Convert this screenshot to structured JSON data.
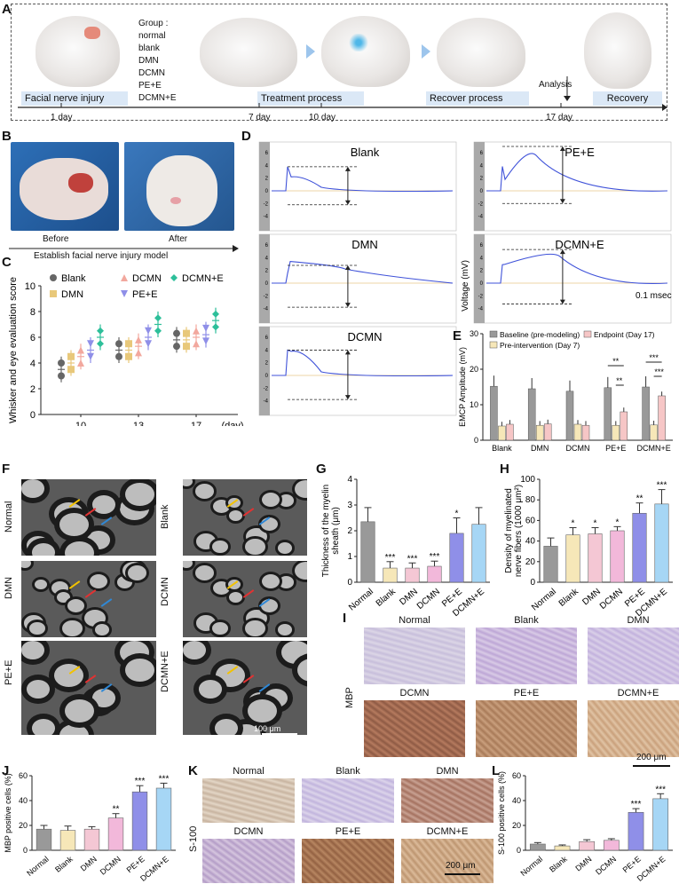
{
  "panelA": {
    "letter": "A",
    "group_title": "Group :",
    "groups": [
      "normal",
      "blank",
      "DMN",
      "DCMN",
      "PE+E",
      "DCMN+E"
    ],
    "stages": [
      "Facial nerve injury",
      "Treatment process",
      "Recover process",
      "Recovery"
    ],
    "days": [
      "1 day",
      "7 day",
      "10 day",
      "17 day"
    ],
    "analysis": "Analysis"
  },
  "panelB": {
    "letter": "B",
    "before": "Before",
    "after": "After",
    "caption": "Establish facial nerve injury model"
  },
  "panelC": {
    "letter": "C",
    "chart_data": {
      "type": "scatter",
      "ylabel": "Whisker and eye evaluation score",
      "xlabel": "(day)",
      "categories": [
        "10",
        "13",
        "17"
      ],
      "ylim": [
        0,
        10
      ],
      "yticks": [
        0,
        2,
        4,
        6,
        8,
        10
      ],
      "series": [
        {
          "name": "Blank",
          "color": "#666666",
          "marker": "circle",
          "means": [
            3.5,
            5.0,
            5.8
          ]
        },
        {
          "name": "DMN",
          "color": "#e8c87a",
          "marker": "square",
          "means": [
            4.0,
            5.0,
            5.8
          ]
        },
        {
          "name": "DCMN",
          "color": "#f2a89e",
          "marker": "triangle-up",
          "means": [
            4.5,
            5.3,
            6.0
          ]
        },
        {
          "name": "PE+E",
          "color": "#8f8fe8",
          "marker": "triangle-down",
          "means": [
            5.0,
            6.0,
            6.2
          ]
        },
        {
          "name": "DCMN+E",
          "color": "#2dbf9a",
          "marker": "diamond",
          "means": [
            6.0,
            7.0,
            7.3
          ]
        }
      ]
    }
  },
  "panelD": {
    "letter": "D",
    "traces": [
      "Blank",
      "PE+E",
      "DMN",
      "DCMN+E",
      "DCMN"
    ],
    "ylabel": "Voltage (mV)",
    "time_scale": "0.1 msec",
    "yticks": [
      "8",
      "6",
      "4",
      "2",
      "0",
      "-2",
      "-4"
    ]
  },
  "panelE": {
    "letter": "E",
    "chart_data": {
      "type": "bar",
      "ylabel": "EMCP Amplitude (mV)",
      "categories": [
        "Blank",
        "DMN",
        "DCMN",
        "PE+E",
        "DCMN+E"
      ],
      "ylim": [
        0,
        30
      ],
      "yticks": [
        0,
        10,
        20,
        30
      ],
      "series": [
        {
          "name": "Baseline (pre-modeling)",
          "color": "#999999",
          "values": [
            15.2,
            14.5,
            13.8,
            14.8,
            15.0
          ]
        },
        {
          "name": "Pre-intervention (Day 7)",
          "color": "#f6e7b8",
          "values": [
            4.0,
            4.2,
            4.5,
            4.2,
            4.3
          ]
        },
        {
          "name": "Endpoint (Day 17)",
          "color": "#f6c6c6",
          "values": [
            4.5,
            4.6,
            4.2,
            8.0,
            12.5
          ]
        }
      ],
      "annotations": [
        "**",
        "**",
        "***",
        "***"
      ]
    }
  },
  "panelF": {
    "letter": "F",
    "labels": [
      "Normal",
      "Blank",
      "DMN",
      "DCMN",
      "PE+E",
      "DCMN+E"
    ],
    "scale": "100 μm"
  },
  "panelG": {
    "letter": "G",
    "chart_data": {
      "type": "bar",
      "ylabel": "Thickness of the myelin sheath (μm)",
      "categories": [
        "Normal",
        "Blank",
        "DMN",
        "DCMN",
        "PE+E",
        "DCMN+E"
      ],
      "values": [
        2.35,
        0.55,
        0.55,
        0.62,
        1.9,
        2.25
      ],
      "errors": [
        0.55,
        0.25,
        0.2,
        0.2,
        0.6,
        0.65
      ],
      "colors": [
        "#999999",
        "#f6e7b8",
        "#f4c7d4",
        "#f2b8da",
        "#8f8fe8",
        "#a6d6f5"
      ],
      "sig": [
        "",
        "***",
        "***",
        "***",
        "*",
        ""
      ],
      "ylim": [
        0,
        4
      ],
      "yticks": [
        0,
        1,
        2,
        3,
        4
      ]
    }
  },
  "panelH": {
    "letter": "H",
    "chart_data": {
      "type": "bar",
      "ylabel": "Density of myelinated nerve fibers (1000 μm²)",
      "categories": [
        "Normal",
        "Blank",
        "DMN",
        "DCMN",
        "PE+E",
        "DCMN+E"
      ],
      "values": [
        35,
        46,
        47,
        50,
        67,
        76
      ],
      "errors": [
        8,
        7,
        6,
        4,
        10,
        14
      ],
      "colors": [
        "#999999",
        "#f6e7b8",
        "#f4c7d4",
        "#f2b8da",
        "#8f8fe8",
        "#a6d6f5"
      ],
      "sig": [
        "",
        "*",
        "*",
        "*",
        "**",
        "***"
      ],
      "ylim": [
        0,
        100
      ],
      "yticks": [
        0,
        20,
        40,
        60,
        80,
        100
      ]
    }
  },
  "panelI": {
    "letter": "I",
    "side": "MBP",
    "labels": [
      "Normal",
      "Blank",
      "DMN",
      "DCMN",
      "PE+E",
      "DCMN+E"
    ],
    "scale": "200 μm"
  },
  "panelJ": {
    "letter": "J",
    "chart_data": {
      "type": "bar",
      "ylabel": "MBP positive cells (%)",
      "categories": [
        "Normal",
        "Blank",
        "DMN",
        "DCMN",
        "PE+E",
        "DCMN+E"
      ],
      "values": [
        17,
        16,
        17,
        26,
        47,
        50
      ],
      "errors": [
        3,
        3.5,
        2,
        3.5,
        5,
        4
      ],
      "colors": [
        "#999999",
        "#f6e7b8",
        "#f4c7d4",
        "#f2b8da",
        "#8f8fe8",
        "#a6d6f5"
      ],
      "sig": [
        "",
        "",
        "",
        "**",
        "***",
        "***"
      ],
      "ylim": [
        0,
        60
      ],
      "yticks": [
        0,
        20,
        40,
        60
      ]
    }
  },
  "panelK": {
    "letter": "K",
    "side": "S-100",
    "labels": [
      "Normal",
      "Blank",
      "DMN",
      "DCMN",
      "PE+E",
      "DCMN+E"
    ],
    "scale": "200 μm"
  },
  "panelL": {
    "letter": "L",
    "chart_data": {
      "type": "bar",
      "ylabel": "S-100 positive cells (%)",
      "categories": [
        "Normal",
        "Blank",
        "DMN",
        "DCMN",
        "PE+E",
        "DCMN+E"
      ],
      "values": [
        5,
        3.5,
        7,
        8,
        30.5,
        41.5
      ],
      "errors": [
        1.2,
        0.8,
        1.5,
        1.3,
        3,
        4
      ],
      "colors": [
        "#999999",
        "#f6e7b8",
        "#f4c7d4",
        "#f2b8da",
        "#8f8fe8",
        "#a6d6f5"
      ],
      "sig": [
        "",
        "",
        "",
        "",
        "***",
        "***"
      ],
      "ylim": [
        0,
        60
      ],
      "yticks": [
        0,
        20,
        40,
        60
      ]
    }
  }
}
